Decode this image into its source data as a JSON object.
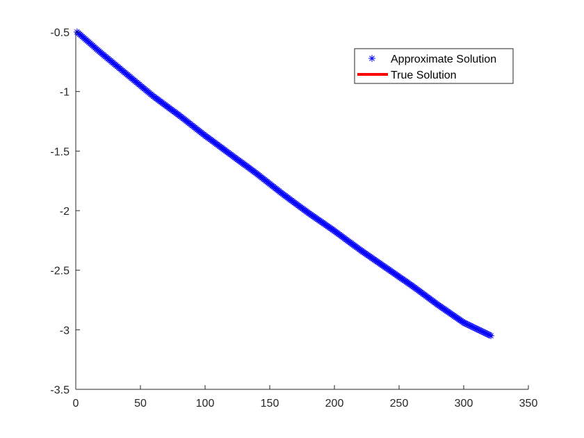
{
  "chart_data": {
    "type": "line",
    "title": "",
    "xlabel": "",
    "ylabel": "",
    "xlim": [
      0,
      350
    ],
    "ylim": [
      -3.5,
      -0.5
    ],
    "xticks": [
      0,
      50,
      100,
      150,
      200,
      250,
      300,
      350
    ],
    "yticks": [
      -3.5,
      -3,
      -2.5,
      -2,
      -1.5,
      -1,
      -0.5
    ],
    "xtick_labels": [
      "0",
      "50",
      "100",
      "150",
      "200",
      "250",
      "300",
      "350"
    ],
    "ytick_labels": [
      "-3.5",
      "-3",
      "-2.5",
      "-2",
      "-1.5",
      "-1",
      "-0.5"
    ],
    "grid": false,
    "legend_position": "top-right",
    "x": [
      1,
      20,
      40,
      60,
      80,
      100,
      120,
      140,
      160,
      180,
      200,
      220,
      240,
      260,
      280,
      300,
      321
    ],
    "series": [
      {
        "name": "True Solution",
        "style": "line",
        "color": "#ff0000",
        "values": [
          -0.5,
          -0.68,
          -0.86,
          -1.04,
          -1.2,
          -1.37,
          -1.53,
          -1.69,
          -1.86,
          -2.02,
          -2.17,
          -2.33,
          -2.48,
          -2.63,
          -2.79,
          -2.94,
          -3.05
        ]
      },
      {
        "name": "Approximate Solution",
        "style": "marker",
        "marker": "asterisk",
        "color": "#0000ff",
        "values": [
          -0.5,
          -0.68,
          -0.86,
          -1.04,
          -1.2,
          -1.37,
          -1.53,
          -1.69,
          -1.86,
          -2.02,
          -2.17,
          -2.33,
          -2.48,
          -2.63,
          -2.79,
          -2.94,
          -3.05
        ]
      }
    ],
    "legend": [
      {
        "label": "Approximate Solution",
        "symbol": "asterisk",
        "color": "#0000ff"
      },
      {
        "label": "True Solution",
        "symbol": "line",
        "color": "#ff0000"
      }
    ]
  }
}
